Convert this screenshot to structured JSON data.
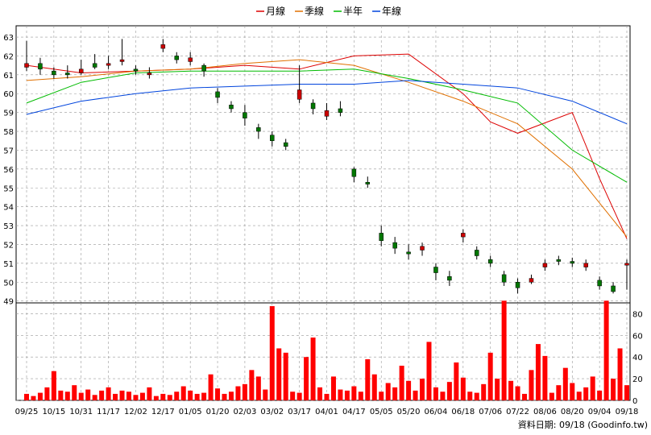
{
  "legend": [
    {
      "label": "月線",
      "color": "#dd0000"
    },
    {
      "label": "季線",
      "color": "#e07000"
    },
    {
      "label": "半年",
      "color": "#00bb00"
    },
    {
      "label": "年線",
      "color": "#0044dd"
    }
  ],
  "footer_label": "資料日期: 09/18 (Goodinfo.tw)",
  "colors": {
    "up": "#cc0000",
    "down": "#007700",
    "volume": "#ff0000",
    "grid": "#999999"
  },
  "chart_data": [
    {
      "type": "line",
      "panel": "price",
      "grid": true,
      "ylim": [
        48.9,
        63.6
      ],
      "yticks": [
        49,
        50,
        51,
        52,
        53,
        54,
        55,
        56,
        57,
        58,
        59,
        60,
        61,
        62,
        63
      ],
      "x_tick_labels": [
        "09/25",
        "10/15",
        "10/31",
        "11/17",
        "12/02",
        "12/17",
        "01/05",
        "01/20",
        "02/03",
        "03/02",
        "03/17",
        "04/01",
        "04/17",
        "05/05",
        "05/20",
        "06/04",
        "06/18",
        "07/06",
        "07/22",
        "08/06",
        "08/20",
        "09/04",
        "09/18"
      ],
      "series": [
        {
          "name": "月線",
          "x": [
            0,
            2,
            4,
            6,
            8,
            10,
            12,
            14,
            16,
            17,
            18,
            20,
            21,
            22
          ],
          "values": [
            61.5,
            61.1,
            61.2,
            61.3,
            61.5,
            61.3,
            62.0,
            62.1,
            60.0,
            58.5,
            57.9,
            59.0,
            55.5,
            52.3
          ]
        },
        {
          "name": "季線",
          "x": [
            0,
            2,
            4,
            6,
            8,
            10,
            12,
            14,
            16,
            18,
            20,
            22
          ],
          "values": [
            60.7,
            60.9,
            61.2,
            61.3,
            61.6,
            61.8,
            61.5,
            60.6,
            59.6,
            58.4,
            56.0,
            52.4
          ]
        },
        {
          "name": "半年",
          "x": [
            0,
            2,
            4,
            6,
            8,
            10,
            12,
            14,
            16,
            18,
            20,
            22
          ],
          "values": [
            59.5,
            60.6,
            61.1,
            61.2,
            61.2,
            61.2,
            61.3,
            60.8,
            60.2,
            59.5,
            57.0,
            55.3
          ]
        },
        {
          "name": "年線",
          "x": [
            0,
            2,
            4,
            6,
            8,
            10,
            12,
            14,
            16,
            18,
            20,
            22
          ],
          "values": [
            58.9,
            59.6,
            60.0,
            60.3,
            60.4,
            60.5,
            60.5,
            60.7,
            60.5,
            60.3,
            59.6,
            58.4
          ]
        }
      ],
      "candles": {
        "x": [
          0,
          0.5,
          1,
          1.5,
          2,
          2.5,
          3,
          3.5,
          4,
          4.5,
          5,
          5.5,
          6,
          6.5,
          7,
          7.5,
          8,
          8.5,
          9,
          9.5,
          10,
          10.5,
          11,
          11.5,
          12,
          12.5,
          13,
          13.5,
          14,
          14.5,
          15,
          15.5,
          16,
          16.5,
          17,
          17.5,
          18,
          18.5,
          19,
          19.5,
          20,
          20.5,
          21,
          21.5,
          22
        ],
        "close": [
          61.6,
          61.3,
          61.0,
          61.0,
          61.3,
          61.4,
          61.6,
          61.8,
          61.2,
          61.1,
          62.6,
          61.8,
          61.9,
          61.2,
          59.8,
          59.2,
          58.7,
          58.0,
          57.5,
          57.2,
          60.2,
          59.2,
          59.1,
          59.0,
          55.6,
          55.2,
          52.2,
          51.8,
          51.5,
          51.9,
          50.5,
          50.1,
          52.6,
          51.4,
          51.0,
          50.0,
          49.7,
          50.2,
          51.0,
          51.1,
          51.0,
          51.0,
          49.8,
          49.5,
          51.0
        ],
        "open": [
          61.4,
          61.6,
          61.2,
          61.1,
          61.1,
          61.6,
          61.5,
          61.7,
          61.3,
          61.0,
          62.4,
          62.0,
          61.7,
          61.5,
          60.1,
          59.4,
          59.0,
          58.2,
          57.8,
          57.4,
          59.7,
          59.5,
          58.8,
          59.2,
          56.0,
          55.3,
          52.6,
          52.1,
          51.6,
          51.7,
          50.8,
          50.3,
          52.4,
          51.7,
          51.2,
          50.4,
          50.0,
          50.0,
          50.8,
          51.2,
          51.1,
          50.8,
          50.1,
          49.8,
          50.9
        ],
        "high": [
          62.8,
          61.9,
          61.4,
          61.5,
          61.8,
          62.1,
          62.0,
          62.9,
          61.5,
          61.4,
          62.9,
          62.2,
          62.2,
          61.6,
          60.3,
          59.6,
          59.4,
          58.4,
          58.0,
          57.6,
          61.5,
          59.7,
          59.5,
          59.6,
          56.1,
          55.6,
          53.0,
          52.4,
          52.0,
          52.1,
          51.0,
          50.6,
          52.8,
          51.9,
          51.4,
          50.6,
          50.2,
          50.4,
          51.2,
          51.4,
          51.3,
          51.2,
          50.3,
          50.0,
          51.2
        ],
        "low": [
          61.2,
          61.0,
          60.8,
          60.8,
          61.0,
          61.3,
          61.3,
          61.5,
          61.0,
          60.8,
          62.2,
          61.6,
          61.5,
          60.9,
          59.5,
          59.0,
          58.3,
          57.6,
          57.2,
          57.0,
          59.5,
          58.9,
          58.6,
          58.8,
          55.3,
          55.0,
          51.9,
          51.5,
          51.2,
          51.4,
          50.1,
          49.8,
          52.1,
          51.2,
          50.8,
          49.8,
          49.4,
          49.9,
          50.6,
          50.9,
          50.8,
          50.6,
          49.6,
          49.4,
          49.6
        ]
      }
    },
    {
      "type": "bar",
      "panel": "volume",
      "grid": true,
      "ylim": [
        0,
        90
      ],
      "yticks": [
        0,
        20,
        40,
        60,
        80
      ],
      "x": [
        0,
        0.25,
        0.5,
        0.75,
        1,
        1.25,
        1.5,
        1.75,
        2,
        2.25,
        2.5,
        2.75,
        3,
        3.25,
        3.5,
        3.75,
        4,
        4.25,
        4.5,
        4.75,
        5,
        5.25,
        5.5,
        5.75,
        6,
        6.25,
        6.5,
        6.75,
        7,
        7.25,
        7.5,
        7.75,
        8,
        8.25,
        8.5,
        8.75,
        9,
        9.25,
        9.5,
        9.75,
        10,
        10.25,
        10.5,
        10.75,
        11,
        11.25,
        11.5,
        11.75,
        12,
        12.25,
        12.5,
        12.75,
        13,
        13.25,
        13.5,
        13.75,
        14,
        14.25,
        14.5,
        14.75,
        15,
        15.25,
        15.5,
        15.75,
        16,
        16.25,
        16.5,
        16.75,
        17,
        17.25,
        17.5,
        17.75,
        18,
        18.25,
        18.5,
        18.75,
        19,
        19.25,
        19.5,
        19.75,
        20,
        20.25,
        20.5,
        20.75,
        21,
        21.25,
        21.5,
        21.75,
        22
      ],
      "values": [
        6,
        4,
        7,
        12,
        27,
        9,
        8,
        14,
        7,
        10,
        5,
        9,
        12,
        6,
        9,
        8,
        5,
        7,
        12,
        4,
        6,
        5,
        8,
        13,
        9,
        6,
        7,
        24,
        11,
        6,
        8,
        13,
        15,
        28,
        22,
        10,
        87,
        48,
        44,
        8,
        7,
        40,
        58,
        12,
        6,
        22,
        10,
        9,
        13,
        8,
        38,
        24,
        8,
        16,
        12,
        32,
        18,
        9,
        20,
        54,
        12,
        8,
        17,
        35,
        21,
        8,
        7,
        15,
        44,
        20,
        92,
        18,
        13,
        6,
        28,
        52,
        41,
        7,
        14,
        30,
        16,
        8,
        12,
        22,
        9,
        92,
        20,
        48,
        14
      ]
    }
  ]
}
